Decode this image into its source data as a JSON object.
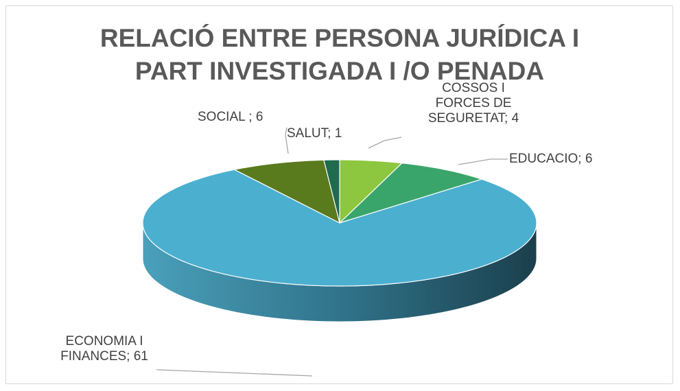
{
  "chart_data": {
    "type": "pie3d",
    "title": "RELACIÓ ENTRE PERSONA JURÍDICA I PART INVESTIGADA I /O PENADA",
    "values": [
      4,
      6,
      61,
      6,
      1
    ],
    "value_labels": [
      "COSSOS I FORCES DE SEGURETAT; 4",
      "EDUCACIO; 6",
      "ECONOMIA I FINANCES; 61",
      "SOCIAL ; 6",
      "SALUT; 1"
    ],
    "colors": [
      "#8dc63f",
      "#3aa56b",
      "#4bafd0",
      "#5a7a1e",
      "#1e6b4e"
    ]
  }
}
